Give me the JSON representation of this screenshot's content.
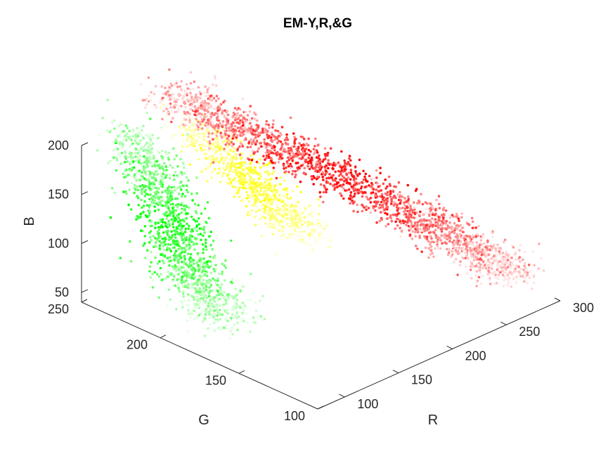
{
  "chart_data": {
    "type": "scatter",
    "title": "EM-Y,R,&G",
    "axes": {
      "R": {
        "label": "R",
        "ticks": [
          100,
          150,
          200,
          250,
          300
        ],
        "range": [
          75,
          300
        ]
      },
      "G": {
        "label": "G",
        "ticks": [
          100,
          150,
          200,
          250
        ],
        "range": [
          100,
          250
        ]
      },
      "B": {
        "label": "B",
        "ticks": [
          50,
          100,
          150,
          200
        ],
        "range": [
          40,
          200
        ]
      }
    },
    "grid": false,
    "legend": "none",
    "projection": "3d",
    "series": [
      {
        "color": "#00ff00",
        "anchors_RGB": [
          [
            120,
            250,
            190
          ],
          [
            115,
            235,
            170
          ],
          [
            112,
            225,
            150
          ],
          [
            110,
            218,
            125
          ],
          [
            112,
            212,
            100
          ],
          [
            115,
            205,
            78
          ],
          [
            118,
            198,
            60
          ],
          [
            122,
            192,
            45
          ]
        ]
      },
      {
        "color": "#ffff00",
        "anchors_RGB": [
          [
            155,
            235,
            195
          ],
          [
            160,
            215,
            170
          ],
          [
            165,
            200,
            150
          ],
          [
            172,
            188,
            128
          ],
          [
            180,
            178,
            108
          ]
        ]
      },
      {
        "color": "#ff0000",
        "anchors_RGB": [
          [
            160,
            250,
            210
          ],
          [
            185,
            230,
            180
          ],
          [
            215,
            200,
            150
          ],
          [
            245,
            165,
            115
          ],
          [
            268,
            140,
            85
          ],
          [
            285,
            120,
            62
          ]
        ]
      }
    ]
  }
}
